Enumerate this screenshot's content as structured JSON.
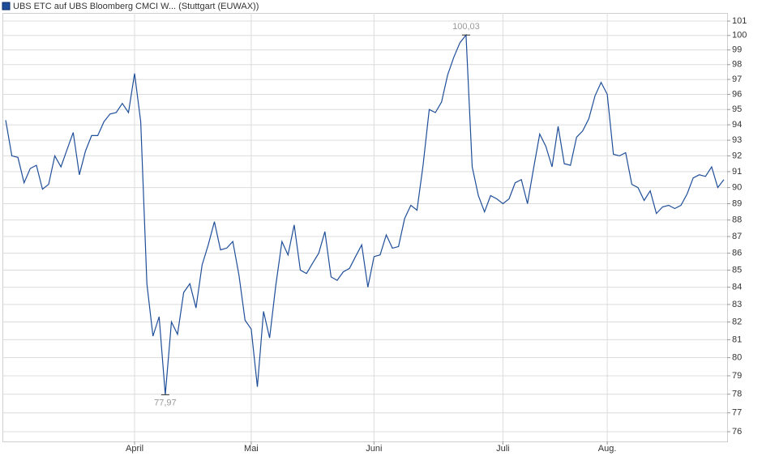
{
  "chart_data": {
    "type": "line",
    "categories": [
      null,
      null,
      null,
      null,
      null,
      null,
      null,
      null,
      null,
      null,
      null,
      null,
      null,
      null,
      null,
      null,
      null,
      null,
      null,
      null,
      null,
      "April",
      null,
      null,
      null,
      null,
      null,
      null,
      null,
      null,
      null,
      null,
      null,
      null,
      null,
      null,
      null,
      null,
      null,
      null,
      "Mai",
      null,
      null,
      null,
      null,
      null,
      null,
      null,
      null,
      null,
      null,
      null,
      null,
      null,
      null,
      null,
      null,
      null,
      null,
      null,
      "Juni",
      null,
      null,
      null,
      null,
      null,
      null,
      null,
      null,
      null,
      null,
      null,
      null,
      null,
      null,
      null,
      null,
      null,
      null,
      null,
      null,
      "Juli",
      null,
      null,
      null,
      null,
      null,
      null,
      null,
      null,
      null,
      null,
      null,
      null,
      null,
      null,
      null,
      null,
      "Aug.",
      null,
      null,
      null,
      null,
      null,
      null,
      null,
      null,
      null,
      null,
      null,
      null,
      null,
      null,
      null,
      null,
      null,
      null,
      null
    ],
    "series": [
      {
        "name": "UBS ETC auf UBS Bloomberg CMCI W... (Stuttgart (EUWAX))",
        "color": "#1f4e99",
        "values": [
          94.3,
          92.0,
          91.9,
          90.3,
          91.2,
          91.4,
          89.9,
          90.2,
          92.0,
          91.3,
          92.4,
          93.5,
          90.8,
          92.3,
          93.3,
          93.3,
          94.2,
          94.7,
          94.8,
          95.4,
          94.8,
          97.4,
          94.2,
          84.2,
          81.2,
          82.3,
          77.97,
          82.0,
          81.3,
          83.7,
          84.2,
          82.8,
          85.3,
          86.5,
          87.9,
          86.2,
          86.3,
          86.7,
          84.7,
          82.1,
          81.6,
          78.4,
          82.6,
          81.1,
          84.1,
          86.7,
          85.9,
          87.7,
          85.0,
          84.8,
          85.4,
          86.0,
          87.3,
          84.6,
          84.4,
          84.9,
          85.1,
          85.8,
          86.5,
          84.0,
          85.8,
          85.9,
          87.1,
          86.3,
          86.4,
          88.1,
          88.9,
          88.6,
          91.4,
          95.0,
          94.8,
          95.5,
          97.3,
          98.5,
          99.5,
          100.03,
          91.3,
          89.5,
          88.5,
          89.5,
          89.3,
          89.0,
          89.3,
          90.3,
          90.5,
          89.0,
          91.2,
          93.4,
          92.6,
          91.3,
          93.9,
          91.5,
          91.4,
          93.2,
          93.6,
          94.4,
          95.9,
          96.8,
          96.0,
          92.1,
          92.0,
          92.2,
          90.2,
          90.0,
          89.2,
          89.8,
          88.4,
          88.8,
          88.9,
          88.7,
          88.9,
          89.6,
          90.6,
          90.8,
          90.7,
          91.3,
          90.0,
          90.5
        ]
      }
    ],
    "max_label": "100,03",
    "min_label": "77,97",
    "ylim": [
      75.49,
      101.57
    ],
    "log_scale": true,
    "yticks": [
      76,
      77,
      78,
      79,
      80,
      81,
      82,
      83,
      84,
      85,
      86,
      87,
      88,
      89,
      90,
      91,
      92,
      93,
      94,
      95,
      96,
      97,
      98,
      99,
      100,
      101
    ],
    "grid": true
  }
}
